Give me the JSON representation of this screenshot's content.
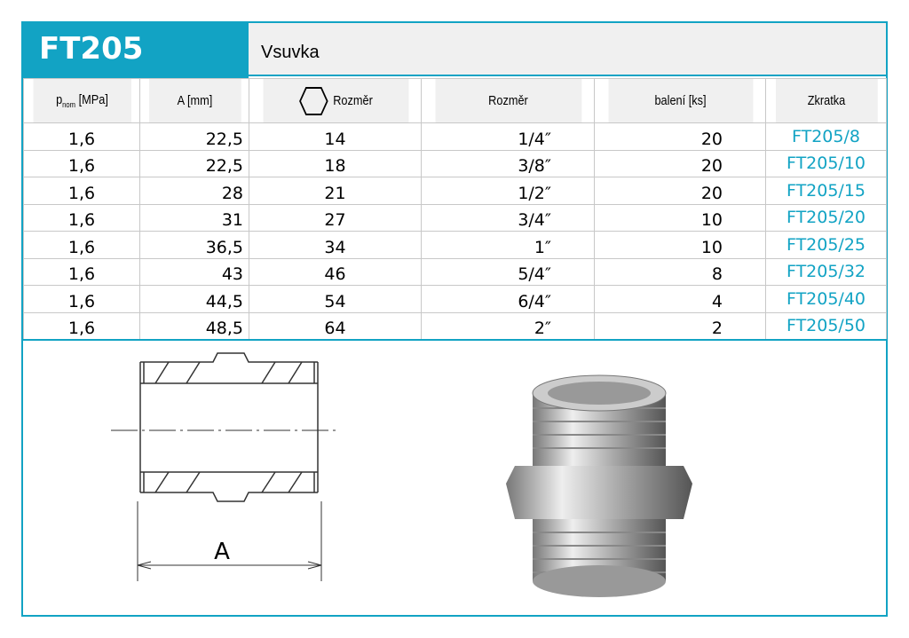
{
  "header": {
    "code": "FT205",
    "name": "Vsuvka"
  },
  "columns": {
    "p": "p",
    "p_sub": "nom",
    "p_unit": " [MPa]",
    "a": "A [mm]",
    "hex": "Rozměr",
    "size": "Rozměr",
    "pack": "balení [ks]",
    "abbr": "Zkratka"
  },
  "rows": [
    {
      "p": "1,6",
      "a": "22,5",
      "hex": "14",
      "size": "1/4″",
      "pack": "20",
      "abbr": "FT205/8"
    },
    {
      "p": "1,6",
      "a": "22,5",
      "hex": "18",
      "size": "3/8″",
      "pack": "20",
      "abbr": "FT205/10"
    },
    {
      "p": "1,6",
      "a": "28",
      "hex": "21",
      "size": "1/2″",
      "pack": "20",
      "abbr": "FT205/15"
    },
    {
      "p": "1,6",
      "a": "31",
      "hex": "27",
      "size": "3/4″",
      "pack": "10",
      "abbr": "FT205/20"
    },
    {
      "p": "1,6",
      "a": "36,5",
      "hex": "34",
      "size": "1″",
      "pack": "10",
      "abbr": "FT205/25"
    },
    {
      "p": "1,6",
      "a": "43",
      "hex": "46",
      "size": "5/4″",
      "pack": "8",
      "abbr": "FT205/32"
    },
    {
      "p": "1,6",
      "a": "44,5",
      "hex": "54",
      "size": "6/4″",
      "pack": "4",
      "abbr": "FT205/40"
    },
    {
      "p": "1,6",
      "a": "48,5",
      "hex": "64",
      "size": "2″",
      "pack": "2",
      "abbr": "FT205/50"
    }
  ],
  "drawing": {
    "dimension_label": "A"
  },
  "colors": {
    "accent": "#12a3c4",
    "header_bg": "#f0f0f0"
  }
}
